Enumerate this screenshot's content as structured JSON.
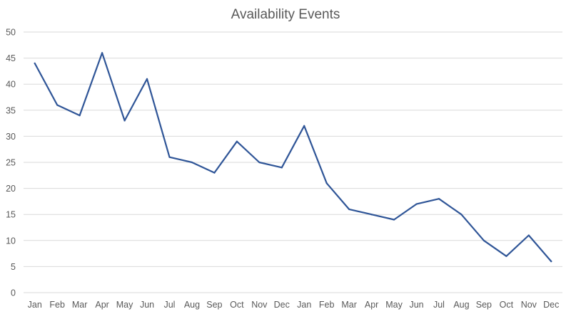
{
  "chart_data": {
    "type": "line",
    "title": "Availability Events",
    "xlabel": "",
    "ylabel": "",
    "categories": [
      "Jan",
      "Feb",
      "Mar",
      "Apr",
      "May",
      "Jun",
      "Jul",
      "Aug",
      "Sep",
      "Oct",
      "Nov",
      "Dec",
      "Jan",
      "Feb",
      "Mar",
      "Apr",
      "May",
      "Jun",
      "Jul",
      "Aug",
      "Sep",
      "Oct",
      "Nov",
      "Dec"
    ],
    "series": [
      {
        "values": [
          44,
          36,
          34,
          46,
          33,
          41,
          26,
          25,
          23,
          29,
          25,
          24,
          32,
          21,
          16,
          15,
          14,
          17,
          18,
          15,
          10,
          7,
          11,
          6
        ]
      }
    ],
    "ylim": [
      0,
      50
    ],
    "yticks": [
      0,
      5,
      10,
      15,
      20,
      25,
      30,
      35,
      40,
      45,
      50
    ],
    "grid": true,
    "legend": "none",
    "colors": {
      "line": "#2f5597",
      "grid": "#d9d9d9",
      "text": "#595959"
    }
  }
}
